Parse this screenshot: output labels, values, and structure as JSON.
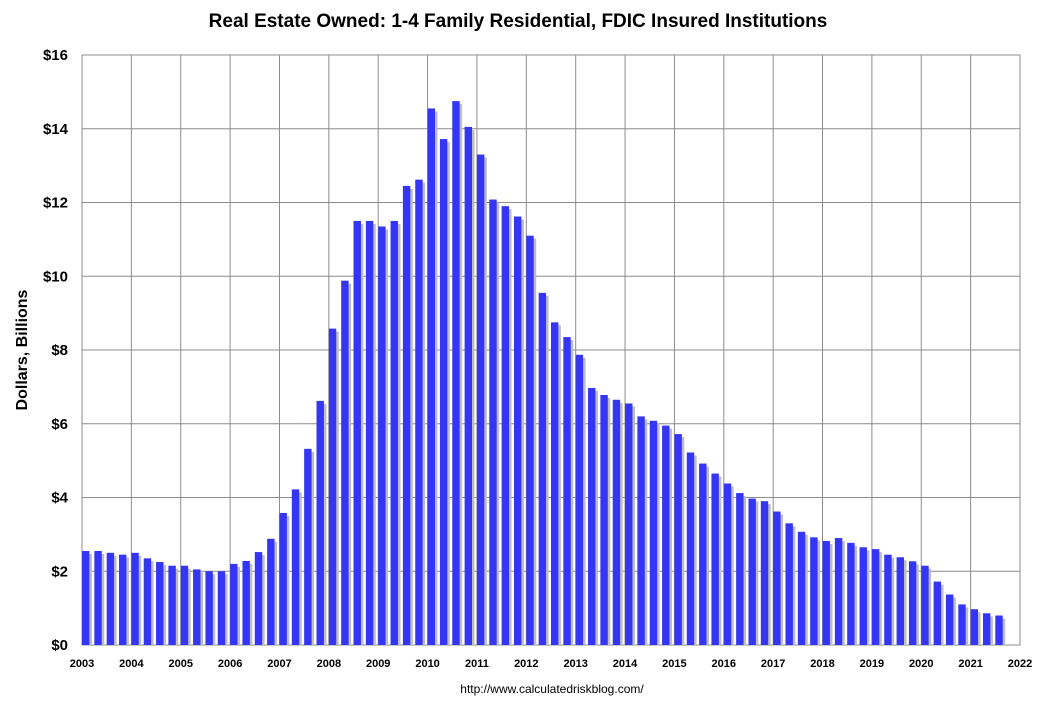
{
  "chart_data": {
    "type": "bar",
    "title": "Real Estate Owned: 1-4 Family Residential, FDIC Insured Institutions",
    "ylabel": "Dollars, Billions",
    "xlabel": "",
    "source": "http://www.calculatedriskblog.com/",
    "ylim": [
      0,
      16
    ],
    "xlim": [
      2003,
      2022
    ],
    "y_ticks": [
      "$0",
      "$2",
      "$4",
      "$6",
      "$8",
      "$10",
      "$12",
      "$14",
      "$16"
    ],
    "x_ticks": [
      "2003",
      "2004",
      "2005",
      "2006",
      "2007",
      "2008",
      "2009",
      "2010",
      "2011",
      "2012",
      "2013",
      "2014",
      "2015",
      "2016",
      "2017",
      "2018",
      "2019",
      "2020",
      "2021",
      "2022"
    ],
    "grid": true,
    "bar_color": "#3535f5",
    "shadow_color": "#bdbdbd",
    "series": [
      {
        "start": "2003 Q1",
        "frequency": "quarterly",
        "values": [
          2.55,
          2.55,
          2.5,
          2.45,
          2.5,
          2.35,
          2.25,
          2.15,
          2.15,
          2.05,
          2.0,
          2.0,
          2.2,
          2.28,
          2.52,
          2.88,
          3.58,
          4.22,
          5.32,
          6.62,
          8.58,
          9.88,
          11.5,
          11.5,
          11.35,
          11.5,
          12.45,
          12.62,
          14.55,
          13.72,
          14.75,
          14.05,
          13.3,
          12.08,
          11.9,
          11.62,
          11.1,
          9.55,
          8.75,
          8.35,
          7.87,
          6.97,
          6.78,
          6.65,
          6.55,
          6.2,
          6.08,
          5.95,
          5.72,
          5.22,
          4.92,
          4.65,
          4.38,
          4.12,
          3.97,
          3.9,
          3.62,
          3.3,
          3.07,
          2.92,
          2.82,
          2.9,
          2.77,
          2.65,
          2.6,
          2.45,
          2.38,
          2.27,
          2.15,
          1.72,
          1.37,
          1.1,
          0.97,
          0.86,
          0.8
        ]
      }
    ]
  }
}
